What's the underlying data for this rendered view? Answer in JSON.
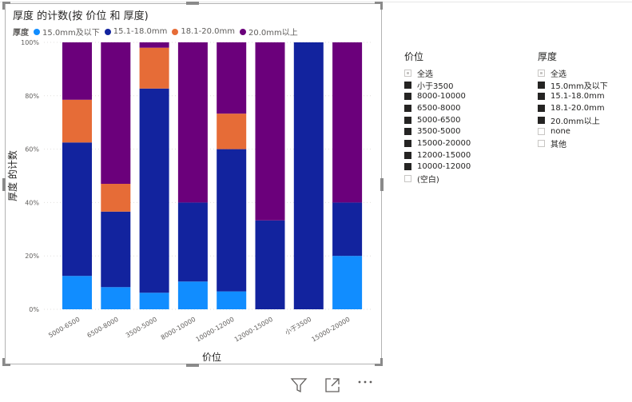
{
  "visual": {
    "title": "厚度 的计数(按 价位 和 厚度)",
    "legend_title": "厚度",
    "legend_items": [
      {
        "label": "15.0mm及以下",
        "color": "#118dff"
      },
      {
        "label": "15.1-18.0mm",
        "color": "#12239e"
      },
      {
        "label": "18.1-20.0mm",
        "color": "#e66c37"
      },
      {
        "label": "20.0mm以上",
        "color": "#6b007b"
      }
    ]
  },
  "chart_data": {
    "type": "bar",
    "stacked": "percent",
    "xlabel": "价位",
    "ylabel": "厚度 的计数",
    "ylim": [
      0,
      100
    ],
    "yticks": [
      "0%",
      "20%",
      "40%",
      "60%",
      "80%",
      "100%"
    ],
    "categories": [
      "5000-6500",
      "6500-8000",
      "3500-5000",
      "8000-10000",
      "10000-12000",
      "12000-15000",
      "小于3500",
      "15000-20000"
    ],
    "series": [
      {
        "name": "15.0mm及以下",
        "color": "#118dff",
        "values": [
          12.5,
          8.3,
          6.2,
          10.4,
          6.7,
          0,
          0,
          20
        ]
      },
      {
        "name": "15.1-18.0mm",
        "color": "#12239e",
        "values": [
          50,
          28.3,
          76.5,
          29.6,
          53.3,
          33.3,
          100,
          20
        ]
      },
      {
        "name": "18.1-20.0mm",
        "color": "#e66c37",
        "values": [
          16,
          10.4,
          15.3,
          0,
          13.3,
          0,
          0,
          0
        ]
      },
      {
        "name": "20.0mm以上",
        "color": "#6b007b",
        "values": [
          21.5,
          53,
          2,
          60,
          26.7,
          66.7,
          0,
          60
        ]
      }
    ]
  },
  "slicers": [
    {
      "title": "价位",
      "items": [
        {
          "label": "全选",
          "state": "partial"
        },
        {
          "label": "小于3500",
          "state": "full"
        },
        {
          "label": "8000-10000",
          "state": "full"
        },
        {
          "label": "6500-8000",
          "state": "full"
        },
        {
          "label": "5000-6500",
          "state": "full"
        },
        {
          "label": "3500-5000",
          "state": "full"
        },
        {
          "label": "15000-20000",
          "state": "full"
        },
        {
          "label": "12000-15000",
          "state": "full"
        },
        {
          "label": "10000-12000",
          "state": "full"
        },
        {
          "label": "(空白)",
          "state": "empty"
        }
      ]
    },
    {
      "title": "厚度",
      "items": [
        {
          "label": "全选",
          "state": "partial"
        },
        {
          "label": "15.0mm及以下",
          "state": "full"
        },
        {
          "label": "15.1-18.0mm",
          "state": "full"
        },
        {
          "label": "18.1-20.0mm",
          "state": "full"
        },
        {
          "label": "20.0mm以上",
          "state": "full"
        },
        {
          "label": "none",
          "state": "empty"
        },
        {
          "label": "其他",
          "state": "empty"
        }
      ]
    }
  ],
  "toolbar": {
    "icons": [
      "filter-icon",
      "focus-mode-icon",
      "more-options-icon"
    ]
  }
}
